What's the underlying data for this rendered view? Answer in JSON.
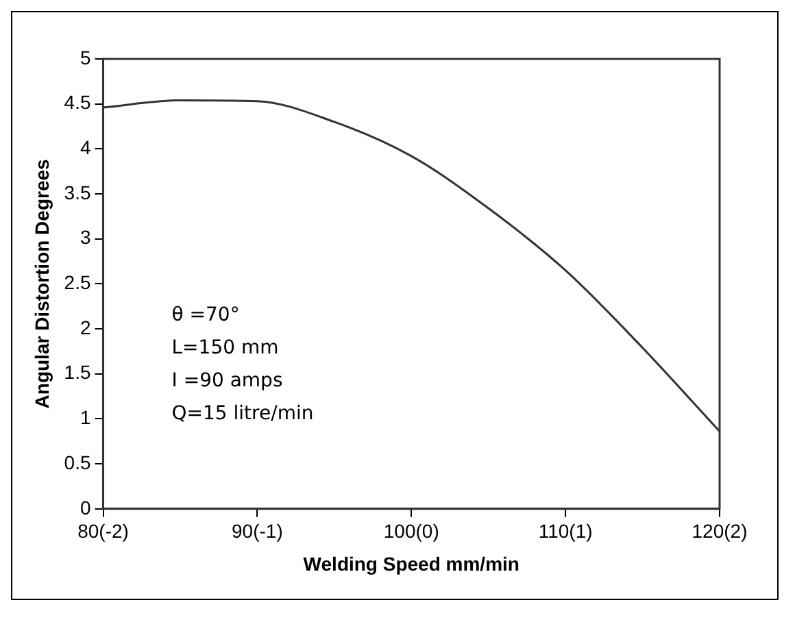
{
  "chart_data": {
    "type": "line",
    "xlabel": "Welding Speed mm/min",
    "ylabel": "Angular Distortion Degrees",
    "categories": [
      "80(-2)",
      null,
      "90(-1)",
      null,
      "100(0)",
      null,
      "110(1)",
      null,
      "120(2)"
    ],
    "series": [
      {
        "color": "#333333",
        "values": [
          4.46,
          4.54,
          4.53,
          4.3,
          3.92,
          3.34,
          2.65,
          1.79,
          0.86
        ]
      }
    ],
    "ylim": [
      0,
      5
    ],
    "yticks": [
      0,
      0.5,
      1,
      1.5,
      2,
      2.5,
      3,
      3.5,
      4,
      4.5,
      5
    ],
    "grid": false,
    "legend": false,
    "marker": "none",
    "line_style": "solid",
    "annotations": [
      "θ =70°",
      "L=150 mm",
      "I =90 amps",
      "Q=15 litre/min"
    ]
  }
}
